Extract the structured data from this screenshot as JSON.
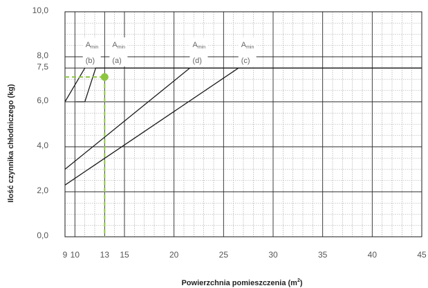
{
  "chart_data": {
    "type": "line",
    "xlabel": "Powierzchnia pomieszczenia (m",
    "xlabel_sup": "2",
    "xlabel_tail": ")",
    "ylabel": "Ilość czynnika chłodniczego (kg)",
    "xlim": [
      9,
      45
    ],
    "ylim": [
      0,
      10
    ],
    "x_ticks": [
      9,
      10,
      13,
      15,
      20,
      25,
      30,
      35,
      40,
      45
    ],
    "x_tick_labels": [
      "9",
      "10",
      "13",
      "15",
      "20",
      "25",
      "30",
      "35",
      "40",
      "45"
    ],
    "y_ticks": [
      0,
      2,
      4,
      6,
      7.5,
      8,
      10
    ],
    "y_tick_labels": [
      "0,0",
      "2,0",
      "4,0",
      "6,0",
      "7,5",
      "8,0",
      "10,0"
    ],
    "grid": true,
    "series": [
      {
        "id": "a",
        "points": [
          [
            10.1,
            6.0
          ],
          [
            11.0,
            6.0
          ],
          [
            12.1,
            7.5
          ],
          [
            45,
            7.5
          ]
        ]
      },
      {
        "id": "b",
        "points": [
          [
            9.0,
            6.0
          ],
          [
            11.0,
            7.5
          ]
        ]
      },
      {
        "id": "d",
        "points": [
          [
            9.0,
            3.0
          ],
          [
            21.6,
            7.5
          ]
        ]
      },
      {
        "id": "c",
        "points": [
          [
            9.0,
            2.3
          ],
          [
            26.5,
            7.5
          ]
        ]
      }
    ],
    "highlight_point": {
      "x": 13,
      "y": 7.1,
      "color": "#8cc63f"
    },
    "highlight_color": "#8cc63f",
    "annotations": [
      {
        "main": "A",
        "sub": "min",
        "tag": "(b)",
        "x": 11.7
      },
      {
        "main": "A",
        "sub": "min",
        "tag": "(a)",
        "x": 14.4
      },
      {
        "main": "A",
        "sub": "min",
        "tag": "(d)",
        "x": 22.5
      },
      {
        "main": "A",
        "sub": "min",
        "tag": "(c)",
        "x": 27.4
      }
    ]
  }
}
